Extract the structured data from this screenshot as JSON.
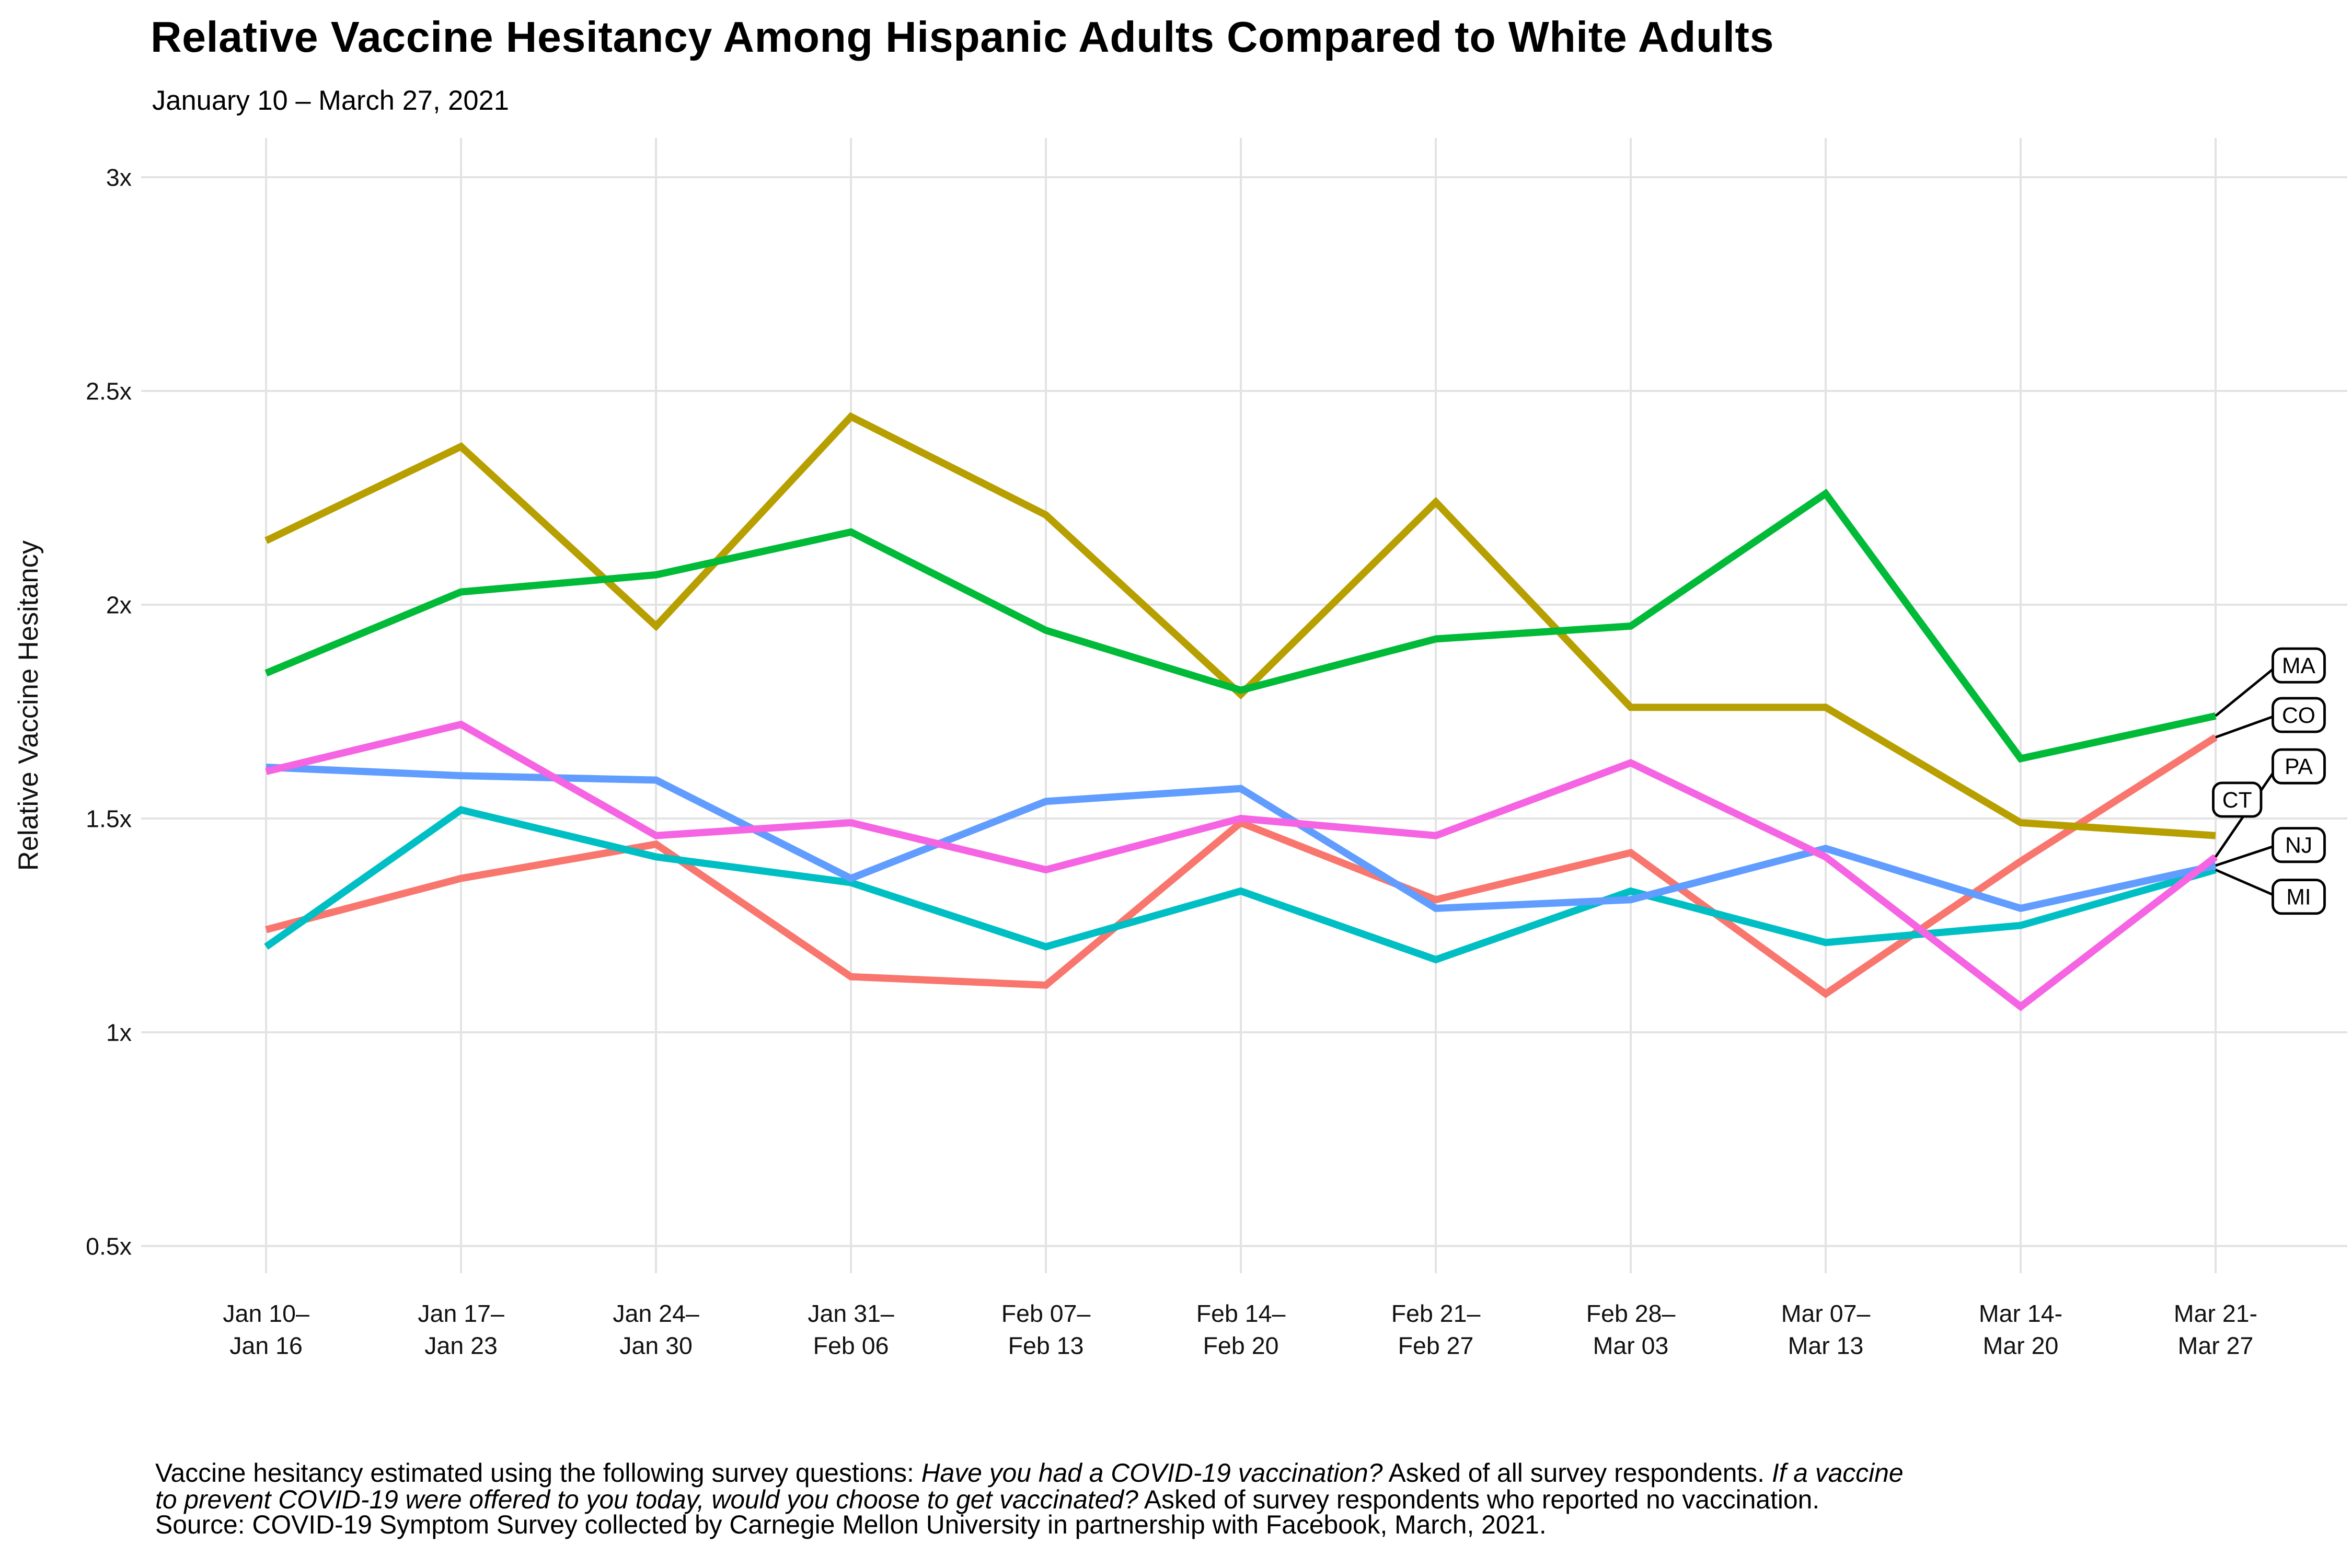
{
  "chart_data": {
    "type": "line",
    "title": "Relative Vaccine Hesitancy Among Hispanic Adults Compared to White Adults",
    "subtitle": "January 10 – March 27, 2021",
    "ylabel": "Relative Vaccine Hesitancy",
    "grid": true,
    "legend_position": "right-end-labels",
    "ylim": [
      0.43,
      3.09
    ],
    "y_ticks": [
      {
        "label": "3x",
        "value": 3
      },
      {
        "label": "2.5x",
        "value": 2.5
      },
      {
        "label": "2x",
        "value": 2
      },
      {
        "label": "1.5x",
        "value": 1.5
      },
      {
        "label": "1x",
        "value": 1
      },
      {
        "label": "0.5x",
        "value": 0.5
      }
    ],
    "x_categories": [
      {
        "line1": "Jan 10–",
        "line2": "Jan 16"
      },
      {
        "line1": "Jan 17–",
        "line2": "Jan 23"
      },
      {
        "line1": "Jan 24–",
        "line2": "Jan 30"
      },
      {
        "line1": "Jan 31–",
        "line2": "Feb 06"
      },
      {
        "line1": "Feb 07–",
        "line2": "Feb 13"
      },
      {
        "line1": "Feb 14–",
        "line2": "Feb 20"
      },
      {
        "line1": "Feb 21–",
        "line2": "Feb 27"
      },
      {
        "line1": "Feb 28–",
        "line2": "Mar 03"
      },
      {
        "line1": "Mar 07–",
        "line2": "Mar 13"
      },
      {
        "line1": "Mar 14-",
        "line2": "Mar 20"
      },
      {
        "line1": "Mar 21-",
        "line2": "Mar 27"
      }
    ],
    "series": [
      {
        "name": "CO",
        "color": "#F8766D",
        "values": [
          1.24,
          1.36,
          1.44,
          1.13,
          1.11,
          1.49,
          1.31,
          1.42,
          1.09,
          1.4,
          1.69
        ]
      },
      {
        "name": "CT",
        "color": "#B79F00",
        "values": [
          2.15,
          2.37,
          1.95,
          2.44,
          2.21,
          1.79,
          2.24,
          1.76,
          1.76,
          1.49,
          1.46
        ]
      },
      {
        "name": "MA",
        "color": "#00BA38",
        "values": [
          1.84,
          2.03,
          2.07,
          2.17,
          1.94,
          1.8,
          1.92,
          1.95,
          2.26,
          1.64,
          1.74
        ]
      },
      {
        "name": "MI",
        "color": "#00BFC4",
        "values": [
          1.2,
          1.52,
          1.41,
          1.35,
          1.2,
          1.33,
          1.17,
          1.33,
          1.21,
          1.25,
          1.38
        ]
      },
      {
        "name": "NJ",
        "color": "#619CFF",
        "values": [
          1.62,
          1.6,
          1.59,
          1.36,
          1.54,
          1.57,
          1.29,
          1.31,
          1.43,
          1.29,
          1.39
        ]
      },
      {
        "name": "PA",
        "color": "#F564E3",
        "values": [
          1.61,
          1.72,
          1.46,
          1.49,
          1.38,
          1.5,
          1.46,
          1.63,
          1.41,
          1.06,
          1.41
        ]
      }
    ],
    "end_labels": [
      {
        "label": "MA",
        "center_v": 1.858,
        "connector": true,
        "shift_left": false
      },
      {
        "label": "CO",
        "center_v": 1.742,
        "connector": true,
        "shift_left": false
      },
      {
        "label": "PA",
        "center_v": 1.622,
        "connector": true,
        "shift_left": false
      },
      {
        "label": "CT",
        "center_v": 1.544,
        "connector": false,
        "shift_left": true
      },
      {
        "label": "NJ",
        "center_v": 1.438,
        "connector": true,
        "shift_left": false
      },
      {
        "label": "MI",
        "center_v": 1.317,
        "connector": true,
        "shift_left": false
      }
    ],
    "grid_color": "#E3E3E3",
    "label_box_border_color": "#000000"
  },
  "footnote_lines": [
    [
      {
        "text": "Vaccine hesitancy estimated using the following survey questions: ",
        "italic": false
      },
      {
        "text": "Have you had a COVID-19 vaccination?",
        "italic": true
      },
      {
        "text": " Asked of all survey respondents. ",
        "italic": false
      },
      {
        "text": "If a vaccine",
        "italic": true
      }
    ],
    [
      {
        "text": "to prevent COVID-19 were offered to you today, would you choose to get vaccinated?",
        "italic": true
      },
      {
        "text": " Asked of survey respondents who reported no vaccination.",
        "italic": false
      }
    ],
    [
      {
        "text": "Source: COVID-19 Symptom Survey collected by Carnegie Mellon University in partnership with Facebook, March, 2021.",
        "italic": false
      }
    ]
  ]
}
